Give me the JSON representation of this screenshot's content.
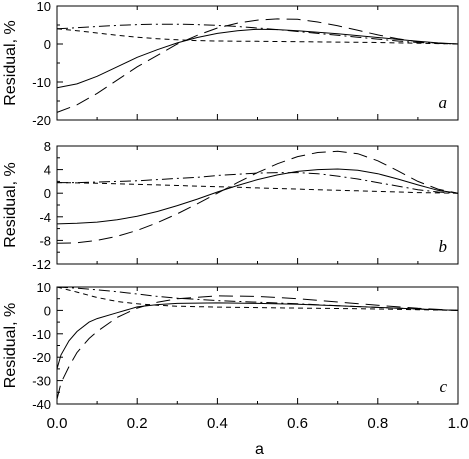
{
  "chart_data": [
    {
      "type": "line",
      "panel_label": "a",
      "ylabel": "Residual, %",
      "xlim": [
        0,
        1
      ],
      "ylim": [
        -20,
        10
      ],
      "yticks": [
        -20,
        -10,
        0,
        10
      ],
      "ytick_labels": [
        "-20",
        "-10",
        "0",
        "10"
      ],
      "series": [
        {
          "style": "solid",
          "x": [
            0,
            0.05,
            0.1,
            0.15,
            0.2,
            0.25,
            0.3,
            0.35,
            0.4,
            0.45,
            0.5,
            0.55,
            0.6,
            0.65,
            0.7,
            0.75,
            0.8,
            0.85,
            0.9,
            0.95,
            1.0
          ],
          "y": [
            -11.5,
            -10.5,
            -8.5,
            -6,
            -3.5,
            -1.5,
            0.3,
            1.7,
            2.8,
            3.5,
            3.9,
            3.8,
            3.5,
            3.1,
            2.7,
            2.2,
            1.7,
            1.2,
            0.7,
            0.3,
            0
          ]
        },
        {
          "style": "long-dash",
          "x": [
            0,
            0.05,
            0.1,
            0.15,
            0.2,
            0.25,
            0.3,
            0.35,
            0.4,
            0.45,
            0.5,
            0.55,
            0.6,
            0.65,
            0.7,
            0.75,
            0.8,
            0.85,
            0.9,
            0.95,
            1.0
          ],
          "y": [
            -18,
            -16,
            -13,
            -9.5,
            -6,
            -3,
            0,
            2.3,
            4.2,
            5.5,
            6.3,
            6.6,
            6.5,
            5.8,
            4.8,
            3.6,
            2.4,
            1.4,
            0.6,
            0.2,
            0
          ]
        },
        {
          "style": "dash-dot",
          "x": [
            0,
            0.05,
            0.1,
            0.15,
            0.2,
            0.25,
            0.3,
            0.35,
            0.4,
            0.45,
            0.5,
            0.55,
            0.6,
            0.65,
            0.7,
            0.75,
            0.8,
            0.85,
            0.9,
            0.95,
            1.0
          ],
          "y": [
            4,
            4.3,
            4.6,
            4.9,
            5.1,
            5.2,
            5.2,
            5.1,
            4.9,
            4.6,
            4.2,
            3.8,
            3.3,
            2.8,
            2.3,
            1.8,
            1.3,
            0.8,
            0.4,
            0.15,
            0
          ]
        },
        {
          "style": "short-dash",
          "x": [
            0,
            0.05,
            0.1,
            0.15,
            0.2,
            0.25,
            0.3,
            0.35,
            0.4,
            0.45,
            0.5,
            0.55,
            0.6,
            0.65,
            0.7,
            0.75,
            0.8,
            0.85,
            0.9,
            0.95,
            1.0
          ],
          "y": [
            4,
            3.5,
            2.9,
            2.3,
            1.8,
            1.4,
            1.1,
            0.9,
            0.8,
            0.75,
            0.7,
            0.65,
            0.6,
            0.55,
            0.5,
            0.45,
            0.4,
            0.3,
            0.2,
            0.1,
            0
          ]
        }
      ]
    },
    {
      "type": "line",
      "panel_label": "b",
      "ylabel": "Residual, %",
      "xlim": [
        0,
        1
      ],
      "ylim": [
        -12,
        8
      ],
      "yticks": [
        -12,
        -8,
        -4,
        0,
        4,
        8
      ],
      "ytick_labels": [
        "-12",
        "-8",
        "-4",
        "0",
        "4",
        "8"
      ],
      "series": [
        {
          "style": "solid",
          "x": [
            0,
            0.05,
            0.1,
            0.15,
            0.2,
            0.25,
            0.3,
            0.35,
            0.4,
            0.45,
            0.5,
            0.55,
            0.6,
            0.65,
            0.7,
            0.75,
            0.8,
            0.85,
            0.9,
            0.95,
            1.0
          ],
          "y": [
            -5.2,
            -5.1,
            -4.9,
            -4.5,
            -3.9,
            -3.1,
            -2.1,
            -1,
            0.2,
            1.3,
            2.3,
            3.1,
            3.7,
            4,
            4.1,
            3.9,
            3.3,
            2.4,
            1.4,
            0.5,
            0
          ]
        },
        {
          "style": "long-dash",
          "x": [
            0,
            0.05,
            0.1,
            0.15,
            0.2,
            0.25,
            0.3,
            0.35,
            0.4,
            0.45,
            0.5,
            0.55,
            0.6,
            0.65,
            0.7,
            0.75,
            0.8,
            0.85,
            0.9,
            0.95,
            1.0
          ],
          "y": [
            -8.5,
            -8.4,
            -8,
            -7.3,
            -6.3,
            -5,
            -3.5,
            -1.8,
            0,
            1.8,
            3.5,
            5,
            6.2,
            6.9,
            7.1,
            6.7,
            5.5,
            3.8,
            2,
            0.7,
            0
          ]
        },
        {
          "style": "dash-dot",
          "x": [
            0,
            0.05,
            0.1,
            0.15,
            0.2,
            0.25,
            0.3,
            0.35,
            0.4,
            0.45,
            0.5,
            0.55,
            0.6,
            0.65,
            0.7,
            0.75,
            0.8,
            0.85,
            0.9,
            0.95,
            1.0
          ],
          "y": [
            1.8,
            1.8,
            1.9,
            2,
            2.1,
            2.3,
            2.5,
            2.7,
            3,
            3.2,
            3.4,
            3.5,
            3.5,
            3.3,
            2.9,
            2.4,
            1.8,
            1.2,
            0.6,
            0.2,
            0
          ]
        },
        {
          "style": "short-dash",
          "x": [
            0,
            0.05,
            0.1,
            0.15,
            0.2,
            0.25,
            0.3,
            0.35,
            0.4,
            0.45,
            0.5,
            0.55,
            0.6,
            0.65,
            0.7,
            0.75,
            0.8,
            0.85,
            0.9,
            0.95,
            1.0
          ],
          "y": [
            1.8,
            1.75,
            1.7,
            1.6,
            1.5,
            1.4,
            1.3,
            1.2,
            1.1,
            1,
            0.9,
            0.8,
            0.7,
            0.6,
            0.5,
            0.4,
            0.3,
            0.2,
            0.1,
            0.05,
            0
          ]
        }
      ]
    },
    {
      "type": "line",
      "panel_label": "c",
      "ylabel": "Residual, %",
      "xlabel": "a",
      "xlim": [
        0,
        1
      ],
      "ylim": [
        -40,
        10
      ],
      "yticks": [
        -40,
        -30,
        -20,
        -10,
        0,
        10
      ],
      "ytick_labels": [
        "-40",
        "-30",
        "-20",
        "-10",
        "0",
        "10"
      ],
      "xticks": [
        0,
        0.2,
        0.4,
        0.6,
        0.8,
        1.0
      ],
      "xtick_labels": [
        "0.0",
        "0.2",
        "0.4",
        "0.6",
        "0.8",
        "1.0"
      ],
      "series": [
        {
          "style": "solid",
          "x": [
            0,
            0.01,
            0.03,
            0.05,
            0.08,
            0.1,
            0.15,
            0.2,
            0.25,
            0.3,
            0.4,
            0.5,
            0.6,
            0.7,
            0.8,
            0.9,
            1.0
          ],
          "y": [
            -25,
            -19,
            -13,
            -9,
            -5,
            -3.5,
            -1,
            1.5,
            2.5,
            3,
            3.2,
            3,
            2.6,
            2,
            1.3,
            0.6,
            0
          ]
        },
        {
          "style": "long-dash",
          "x": [
            0,
            0.01,
            0.03,
            0.05,
            0.08,
            0.1,
            0.15,
            0.2,
            0.25,
            0.3,
            0.4,
            0.5,
            0.6,
            0.7,
            0.8,
            0.9,
            1.0
          ],
          "y": [
            -38,
            -31,
            -24,
            -18,
            -12,
            -9,
            -3,
            1,
            3.5,
            5,
            6.2,
            6,
            5,
            3.6,
            2.2,
            0.9,
            0
          ]
        },
        {
          "style": "dash-dot",
          "x": [
            0,
            0.05,
            0.1,
            0.15,
            0.2,
            0.25,
            0.3,
            0.4,
            0.5,
            0.6,
            0.7,
            0.8,
            0.9,
            1.0
          ],
          "y": [
            10,
            9.5,
            8.8,
            8,
            7,
            6,
            5.2,
            4.2,
            3.5,
            2.8,
            2,
            1.3,
            0.6,
            0
          ]
        },
        {
          "style": "short-dash",
          "x": [
            0,
            0.05,
            0.1,
            0.15,
            0.2,
            0.25,
            0.3,
            0.4,
            0.5,
            0.6,
            0.7,
            0.8,
            0.9,
            1.0
          ],
          "y": [
            10,
            7.8,
            5.5,
            3.8,
            2.8,
            2.2,
            1.8,
            1.4,
            1.2,
            1,
            0.8,
            0.6,
            0.3,
            0
          ]
        }
      ]
    }
  ]
}
